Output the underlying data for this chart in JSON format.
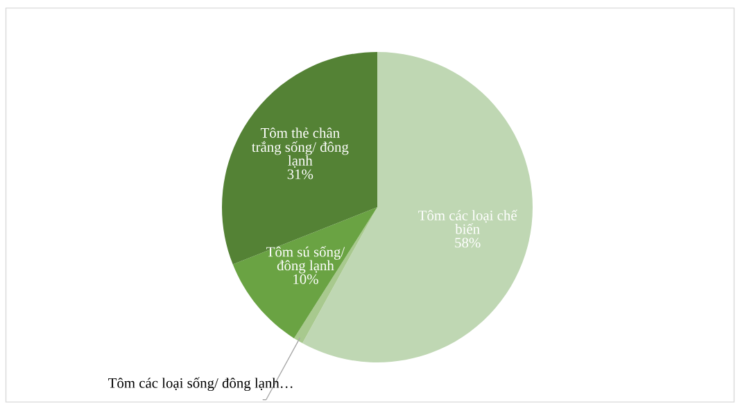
{
  "chart_data": {
    "type": "pie",
    "categories": [
      "Tôm các loại chế biến",
      "Tôm các loại sống/ đông lạnh…",
      "Tôm sú sống/ đông lạnh",
      "Tôm thẻ chân trắng sống/ đông lạnh"
    ],
    "values": [
      58,
      1,
      10,
      31
    ],
    "value_labels": [
      "58%",
      null,
      "10%",
      "31%"
    ],
    "colors": [
      "#bfd7b3",
      "#a8c98e",
      "#6aa343",
      "#548235"
    ]
  }
}
